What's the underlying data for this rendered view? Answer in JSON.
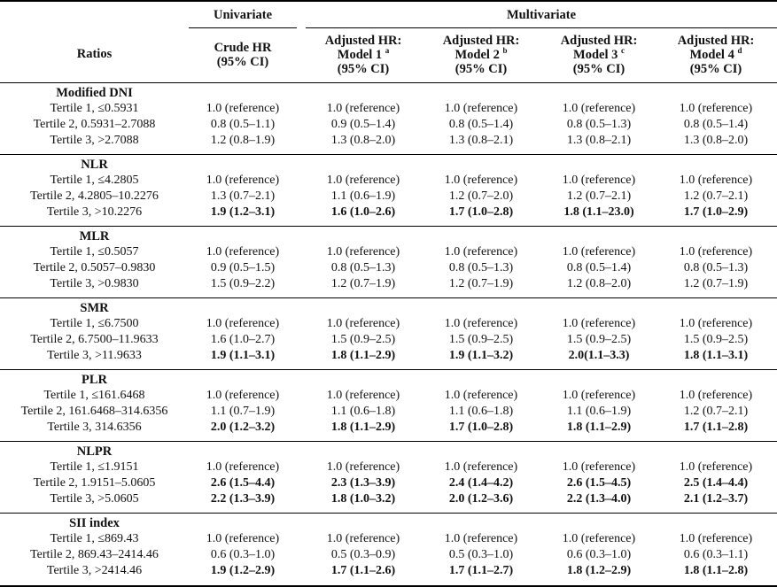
{
  "header": {
    "ratios": "Ratios",
    "univariate": "Univariate",
    "multivariate": "Multivariate",
    "columns": [
      {
        "l1": "Crude HR",
        "l2": "(95% CI)",
        "l3": "",
        "sup": ""
      },
      {
        "l1": "Adjusted HR:",
        "l2": "Model 1",
        "l3": "(95% CI)",
        "sup": "a"
      },
      {
        "l1": "Adjusted HR:",
        "l2": "Model 2",
        "l3": "(95% CI)",
        "sup": "b"
      },
      {
        "l1": "Adjusted HR:",
        "l2": "Model 3",
        "l3": "(95% CI)",
        "sup": "c"
      },
      {
        "l1": "Adjusted HR:",
        "l2": "Model 4",
        "l3": "(95% CI)",
        "sup": "d"
      }
    ]
  },
  "groups": [
    {
      "name": "Modified DNI",
      "rows": [
        {
          "label": "Tertile 1, ≤0.5931",
          "vals": [
            "1.0 (reference)",
            "1.0 (reference)",
            "1.0 (reference)",
            "1.0 (reference)",
            "1.0 (reference)"
          ],
          "bold": [
            false,
            false,
            false,
            false,
            false
          ]
        },
        {
          "label": "Tertile 2, 0.5931–2.7088",
          "vals": [
            "0.8 (0.5–1.1)",
            "0.9 (0.5–1.4)",
            "0.8 (0.5–1.4)",
            "0.8 (0.5–1.3)",
            "0.8 (0.5–1.4)"
          ],
          "bold": [
            false,
            false,
            false,
            false,
            false
          ]
        },
        {
          "label": "Tertile 3, >2.7088",
          "vals": [
            "1.2 (0.8–1.9)",
            "1.3 (0.8–2.0)",
            "1.3 (0.8–2.1)",
            "1.3 (0.8–2.1)",
            "1.3 (0.8–2.0)"
          ],
          "bold": [
            false,
            false,
            false,
            false,
            false
          ]
        }
      ]
    },
    {
      "name": "NLR",
      "rows": [
        {
          "label": "Tertile 1, ≤4.2805",
          "vals": [
            "1.0 (reference)",
            "1.0 (reference)",
            "1.0 (reference)",
            "1.0 (reference)",
            "1.0 (reference)"
          ],
          "bold": [
            false,
            false,
            false,
            false,
            false
          ]
        },
        {
          "label": "Tertile 2, 4.2805–10.2276",
          "vals": [
            "1.3 (0.7–2.1)",
            "1.1 (0.6–1.9)",
            "1.2 (0.7–2.0)",
            "1.2 (0.7–2.1)",
            "1.2 (0.7–2.1)"
          ],
          "bold": [
            false,
            false,
            false,
            false,
            false
          ]
        },
        {
          "label": "Tertile 3, >10.2276",
          "vals": [
            "1.9 (1.2–3.1)",
            "1.6 (1.0–2.6)",
            "1.7 (1.0–2.8)",
            "1.8 (1.1–23.0)",
            "1.7 (1.0–2.9)"
          ],
          "bold": [
            true,
            true,
            true,
            true,
            true
          ]
        }
      ]
    },
    {
      "name": "MLR",
      "rows": [
        {
          "label": "Tertile 1, ≤0.5057",
          "vals": [
            "1.0 (reference)",
            "1.0 (reference)",
            "1.0 (reference)",
            "1.0 (reference)",
            "1.0 (reference)"
          ],
          "bold": [
            false,
            false,
            false,
            false,
            false
          ]
        },
        {
          "label": "Tertile 2, 0.5057–0.9830",
          "vals": [
            "0.9 (0.5–1.5)",
            "0.8 (0.5–1.3)",
            "0.8 (0.5–1.3)",
            "0.8 (0.5–1.4)",
            "0.8 (0.5–1.3)"
          ],
          "bold": [
            false,
            false,
            false,
            false,
            false
          ]
        },
        {
          "label": "Tertile 3, >0.9830",
          "vals": [
            "1.5 (0.9–2.2)",
            "1.2 (0.7–1.9)",
            "1.2 (0.7–1.9)",
            "1.2 (0.8–2.0)",
            "1.2 (0.7–1.9)"
          ],
          "bold": [
            false,
            false,
            false,
            false,
            false
          ]
        }
      ]
    },
    {
      "name": "SMR",
      "rows": [
        {
          "label": "Tertile 1, ≤6.7500",
          "vals": [
            "1.0 (reference)",
            "1.0 (reference)",
            "1.0 (reference)",
            "1.0 (reference)",
            "1.0 (reference)"
          ],
          "bold": [
            false,
            false,
            false,
            false,
            false
          ]
        },
        {
          "label": "Tertile 2, 6.7500–11.9633",
          "vals": [
            "1.6 (1.0–2.7)",
            "1.5 (0.9–2.5)",
            "1.5 (0.9–2.5)",
            "1.5 (0.9–2.5)",
            "1.5 (0.9–2.5)"
          ],
          "bold": [
            false,
            false,
            false,
            false,
            false
          ]
        },
        {
          "label": "Tertile 3, >11.9633",
          "vals": [
            "1.9 (1.1–3.1)",
            "1.8 (1.1–2.9)",
            "1.9 (1.1–3.2)",
            "2.0(1.1–3.3)",
            "1.8 (1.1–3.1)"
          ],
          "bold": [
            true,
            true,
            true,
            true,
            true
          ]
        }
      ]
    },
    {
      "name": "PLR",
      "rows": [
        {
          "label": "Tertile 1, ≤161.6468",
          "vals": [
            "1.0 (reference)",
            "1.0 (reference)",
            "1.0 (reference)",
            "1.0 (reference)",
            "1.0 (reference)"
          ],
          "bold": [
            false,
            false,
            false,
            false,
            false
          ]
        },
        {
          "label": "Tertile 2, 161.6468–314.6356",
          "vals": [
            "1.1 (0.7–1.9)",
            "1.1 (0.6–1.8)",
            "1.1 (0.6–1.8)",
            "1.1 (0.6–1.9)",
            "1.2 (0.7–2.1)"
          ],
          "bold": [
            false,
            false,
            false,
            false,
            false
          ]
        },
        {
          "label": "Tertile 3, 314.6356",
          "vals": [
            "2.0 (1.2–3.2)",
            "1.8 (1.1–2.9)",
            "1.7 (1.0–2.8)",
            "1.8 (1.1–2.9)",
            "1.7 (1.1–2.8)"
          ],
          "bold": [
            true,
            true,
            true,
            true,
            true
          ]
        }
      ]
    },
    {
      "name": "NLPR",
      "rows": [
        {
          "label": "Tertile 1, ≤1.9151",
          "vals": [
            "1.0 (reference)",
            "1.0 (reference)",
            "1.0 (reference)",
            "1.0 (reference)",
            "1.0 (reference)"
          ],
          "bold": [
            false,
            false,
            false,
            false,
            false
          ]
        },
        {
          "label": "Tertile 2, 1.9151–5.0605",
          "vals": [
            "2.6 (1.5–4.4)",
            "2.3 (1.3–3.9)",
            "2.4 (1.4–4.2)",
            "2.6 (1.5–4.5)",
            "2.5 (1.4–4.4)"
          ],
          "bold": [
            true,
            true,
            true,
            true,
            true
          ]
        },
        {
          "label": "Tertile 3, >5.0605",
          "vals": [
            "2.2 (1.3–3.9)",
            "1.8 (1.0–3.2)",
            "2.0 (1.2–3.6)",
            "2.2 (1.3–4.0)",
            "2.1 (1.2–3.7)"
          ],
          "bold": [
            true,
            true,
            true,
            true,
            true
          ]
        }
      ]
    },
    {
      "name": "SII index",
      "rows": [
        {
          "label": "Tertile 1, ≤869.43",
          "vals": [
            "1.0 (reference)",
            "1.0 (reference)",
            "1.0 (reference)",
            "1.0 (reference)",
            "1.0 (reference)"
          ],
          "bold": [
            false,
            false,
            false,
            false,
            false
          ]
        },
        {
          "label": "Tertile 2, 869.43–2414.46",
          "vals": [
            "0.6 (0.3–1.0)",
            "0.5 (0.3–0.9)",
            "0.5 (0.3–1.0)",
            "0.6 (0.3–1.0)",
            "0.6 (0.3–1.1)"
          ],
          "bold": [
            false,
            false,
            false,
            false,
            false
          ]
        },
        {
          "label": "Tertile 3, >2414.46",
          "vals": [
            "1.9 (1.2–2.9)",
            "1.7 (1.1–2.6)",
            "1.7 (1.1–2.7)",
            "1.8 (1.2–2.9)",
            "1.8 (1.1–2.8)"
          ],
          "bold": [
            true,
            true,
            true,
            true,
            true
          ]
        }
      ]
    }
  ]
}
